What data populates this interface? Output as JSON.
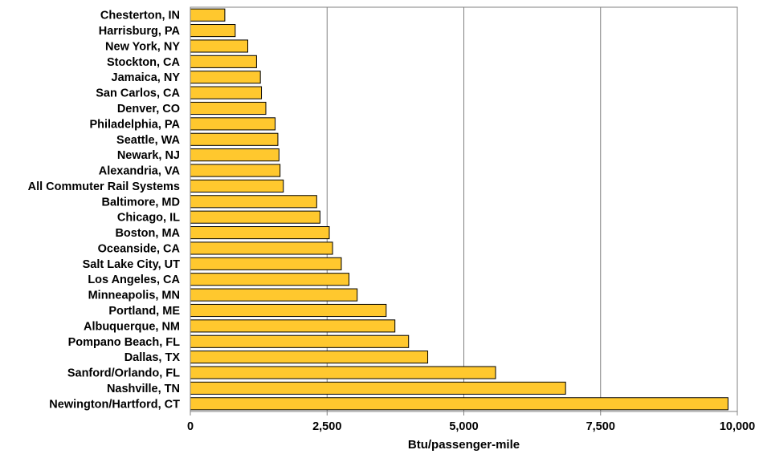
{
  "chart_data": {
    "type": "bar",
    "orientation": "horizontal",
    "title": "",
    "xlabel": "Btu/passenger-mile",
    "ylabel": "",
    "xlim": [
      0,
      10000
    ],
    "x_ticks": [
      0,
      2500,
      5000,
      7500,
      10000
    ],
    "x_tick_labels": [
      "0",
      "2,500",
      "5,000",
      "7,500",
      "10,000"
    ],
    "grid": "vertical major gridlines",
    "legend": "none",
    "bar_color": "#FFC82E",
    "bar_edge_color": "#000000",
    "categories": [
      "Chesterton, IN",
      "Harrisburg, PA",
      "New York, NY",
      "Stockton, CA",
      "Jamaica, NY",
      "San Carlos, CA",
      "Denver, CO",
      "Philadelphia, PA",
      "Seattle, WA",
      "Newark, NJ",
      "Alexandria, VA",
      "All Commuter Rail Systems",
      "Baltimore, MD",
      "Chicago, IL",
      "Boston, MA",
      "Oceanside, CA",
      "Salt Lake City, UT",
      "Los Angeles, CA",
      "Minneapolis, MN",
      "Portland, ME",
      "Albuquerque, NM",
      "Pompano Beach, FL",
      "Dallas, TX",
      "Sanford/Orlando, FL",
      "Nashville, TN",
      "Newington/Hartford, CT"
    ],
    "values": [
      630,
      820,
      1050,
      1210,
      1280,
      1300,
      1380,
      1550,
      1600,
      1620,
      1640,
      1700,
      2310,
      2370,
      2540,
      2600,
      2760,
      2900,
      3050,
      3580,
      3740,
      3990,
      4340,
      5580,
      6860,
      9830
    ]
  }
}
